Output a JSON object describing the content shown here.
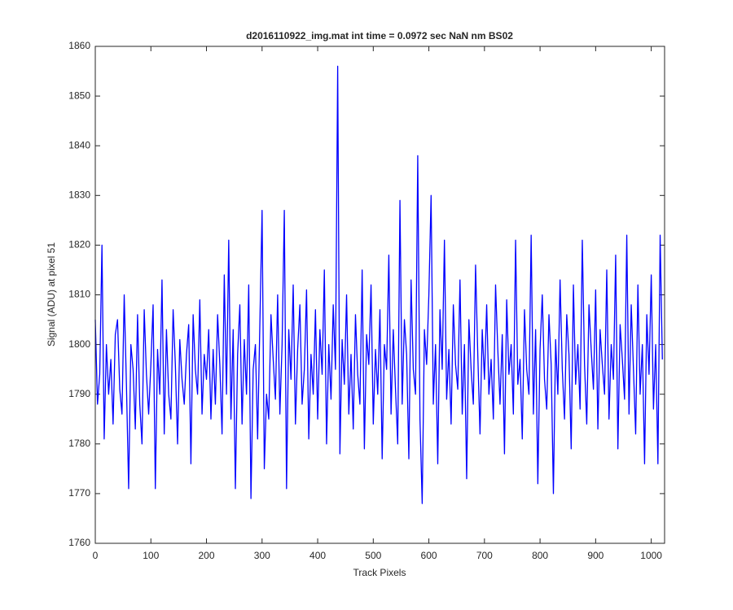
{
  "chart_data": {
    "type": "line",
    "title": "d2016110922_img.mat int time = 0.0972 sec  NaN nm BS02",
    "x_label": "Track Pixels",
    "y_label": "Signal (ADU) at pixel 51",
    "xlim": [
      0,
      1024
    ],
    "ylim": [
      1760,
      1860
    ],
    "xticks": [
      0,
      100,
      200,
      300,
      400,
      500,
      600,
      700,
      800,
      900,
      1000
    ],
    "yticks": [
      1760,
      1770,
      1780,
      1790,
      1800,
      1810,
      1820,
      1830,
      1840,
      1850,
      1860
    ],
    "grid": false,
    "x": [
      0,
      4,
      8,
      12,
      16,
      20,
      24,
      28,
      32,
      36,
      40,
      44,
      48,
      52,
      56,
      60,
      64,
      68,
      72,
      76,
      80,
      84,
      88,
      92,
      96,
      100,
      104,
      108,
      112,
      116,
      120,
      124,
      128,
      132,
      136,
      140,
      144,
      148,
      152,
      156,
      160,
      164,
      168,
      172,
      176,
      180,
      184,
      188,
      192,
      196,
      200,
      204,
      208,
      212,
      216,
      220,
      224,
      228,
      232,
      236,
      240,
      244,
      248,
      252,
      256,
      260,
      264,
      268,
      272,
      276,
      280,
      284,
      288,
      292,
      296,
      300,
      304,
      308,
      312,
      316,
      320,
      324,
      328,
      332,
      336,
      340,
      344,
      348,
      352,
      356,
      360,
      364,
      368,
      372,
      376,
      380,
      384,
      388,
      392,
      396,
      400,
      404,
      408,
      412,
      416,
      420,
      424,
      428,
      432,
      436,
      440,
      444,
      448,
      452,
      456,
      460,
      464,
      468,
      472,
      476,
      480,
      484,
      488,
      492,
      496,
      500,
      504,
      508,
      512,
      516,
      520,
      524,
      528,
      532,
      536,
      540,
      544,
      548,
      552,
      556,
      560,
      564,
      568,
      572,
      576,
      580,
      584,
      588,
      592,
      596,
      600,
      604,
      608,
      612,
      616,
      620,
      624,
      628,
      632,
      636,
      640,
      644,
      648,
      652,
      656,
      660,
      664,
      668,
      672,
      676,
      680,
      684,
      688,
      692,
      696,
      700,
      704,
      708,
      712,
      716,
      720,
      724,
      728,
      732,
      736,
      740,
      744,
      748,
      752,
      756,
      760,
      764,
      768,
      772,
      776,
      780,
      784,
      788,
      792,
      796,
      800,
      804,
      808,
      812,
      816,
      820,
      824,
      828,
      832,
      836,
      840,
      844,
      848,
      852,
      856,
      860,
      864,
      868,
      872,
      876,
      880,
      884,
      888,
      892,
      896,
      900,
      904,
      908,
      912,
      916,
      920,
      924,
      928,
      932,
      936,
      940,
      944,
      948,
      952,
      956,
      960,
      964,
      968,
      972,
      976,
      980,
      984,
      988,
      992,
      996,
      1000,
      1004,
      1008,
      1012,
      1016,
      1020
    ],
    "series": [
      {
        "color": "#0000ff",
        "values": [
          1805,
          1788,
          1794,
          1820,
          1781,
          1800,
          1790,
          1797,
          1784,
          1802,
          1805,
          1791,
          1786,
          1810,
          1792,
          1771,
          1800,
          1795,
          1783,
          1806,
          1788,
          1780,
          1807,
          1794,
          1786,
          1796,
          1808,
          1771,
          1799,
          1790,
          1813,
          1782,
          1803,
          1790,
          1785,
          1807,
          1796,
          1780,
          1801,
          1793,
          1788,
          1798,
          1804,
          1776,
          1806,
          1795,
          1790,
          1809,
          1786,
          1798,
          1793,
          1803,
          1785,
          1799,
          1788,
          1806,
          1796,
          1782,
          1814,
          1790,
          1821,
          1785,
          1803,
          1771,
          1798,
          1808,
          1784,
          1801,
          1790,
          1812,
          1769,
          1795,
          1800,
          1781,
          1804,
          1827,
          1775,
          1790,
          1785,
          1806,
          1797,
          1789,
          1810,
          1786,
          1800,
          1827,
          1771,
          1803,
          1793,
          1812,
          1784,
          1799,
          1808,
          1788,
          1795,
          1811,
          1781,
          1798,
          1790,
          1807,
          1785,
          1803,
          1794,
          1815,
          1780,
          1800,
          1789,
          1808,
          1795,
          1856,
          1778,
          1801,
          1792,
          1810,
          1786,
          1798,
          1783,
          1806,
          1794,
          1788,
          1815,
          1779,
          1802,
          1796,
          1812,
          1784,
          1799,
          1790,
          1807,
          1777,
          1800,
          1795,
          1818,
          1786,
          1803,
          1791,
          1780,
          1829,
          1788,
          1805,
          1798,
          1777,
          1813,
          1795,
          1790,
          1838,
          1785,
          1768,
          1803,
          1796,
          1810,
          1830,
          1788,
          1800,
          1776,
          1807,
          1795,
          1821,
          1789,
          1799,
          1784,
          1808,
          1796,
          1791,
          1813,
          1786,
          1800,
          1773,
          1805,
          1795,
          1788,
          1816,
          1798,
          1782,
          1803,
          1793,
          1808,
          1790,
          1797,
          1785,
          1812,
          1799,
          1788,
          1802,
          1778,
          1809,
          1794,
          1800,
          1786,
          1821,
          1792,
          1797,
          1781,
          1807,
          1795,
          1790,
          1822,
          1786,
          1803,
          1772,
          1799,
          1810,
          1793,
          1787,
          1806,
          1796,
          1770,
          1801,
          1790,
          1813,
          1795,
          1785,
          1806,
          1798,
          1779,
          1812,
          1792,
          1800,
          1787,
          1821,
          1796,
          1784,
          1808,
          1799,
          1791,
          1811,
          1783,
          1803,
          1796,
          1790,
          1815,
          1785,
          1800,
          1793,
          1818,
          1779,
          1804,
          1797,
          1789,
          1822,
          1786,
          1808,
          1795,
          1782,
          1812,
          1790,
          1800,
          1776,
          1806,
          1794,
          1814,
          1787,
          1800,
          1776,
          1822,
          1797
        ]
      }
    ]
  }
}
